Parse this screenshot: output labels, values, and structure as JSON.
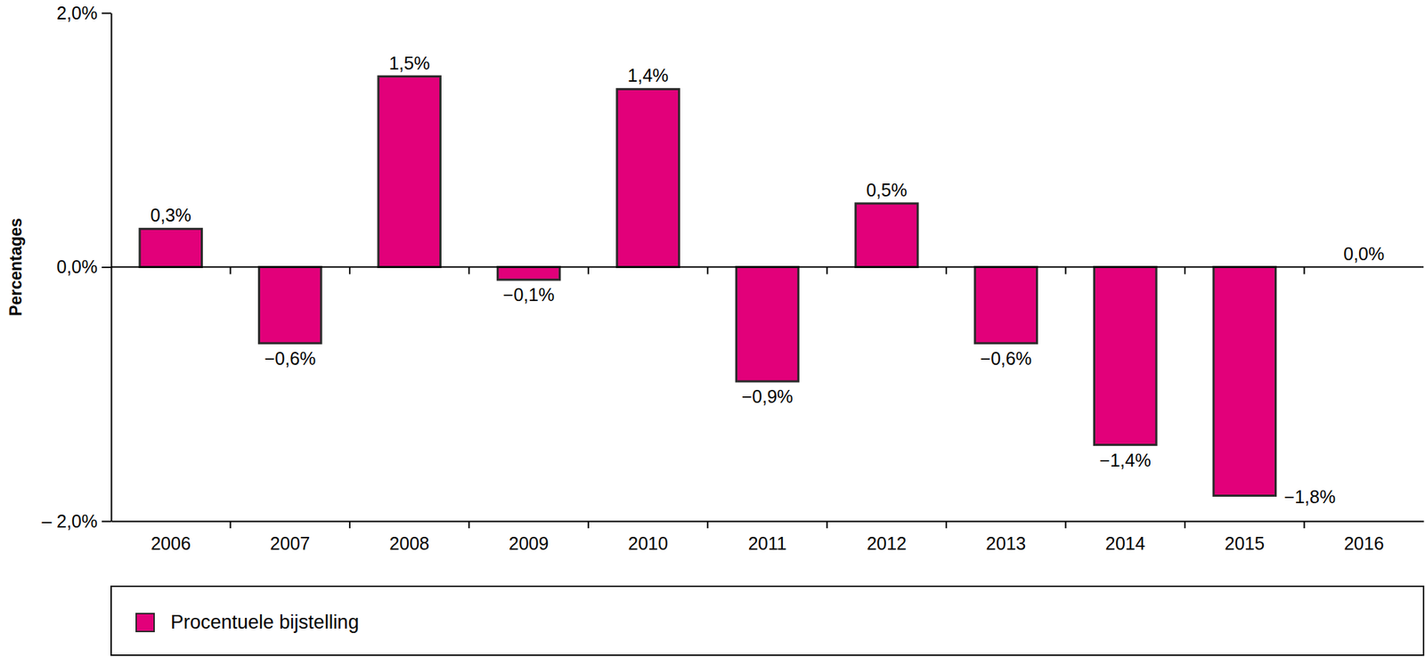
{
  "chart_data": {
    "type": "bar",
    "y_label": "Percentages",
    "categories": [
      "2006",
      "2007",
      "2008",
      "2009",
      "2010",
      "2011",
      "2012",
      "2013",
      "2014",
      "2015",
      "2016"
    ],
    "series": [
      {
        "name": "Procentuele bijstelling",
        "color": "#e2007a",
        "values": [
          0.3,
          -0.6,
          1.5,
          -0.1,
          1.4,
          -0.9,
          0.5,
          -0.6,
          -1.4,
          -1.8,
          0.0
        ],
        "value_labels": [
          "0,3%",
          "−0,6%",
          "1,5%",
          "−0,1%",
          "1,4%",
          "−0,9%",
          "0,5%",
          "−0,6%",
          "−1,4%",
          "−1,8%",
          "0,0%"
        ]
      }
    ],
    "ylim": [
      -2,
      2
    ],
    "yticks": [
      {
        "value": -2,
        "label": "– 2,0%"
      },
      {
        "value": 0,
        "label": "0,0%"
      },
      {
        "value": 2,
        "label": "2,0%"
      }
    ],
    "data_labels": true,
    "legend": "bottom",
    "grid": false
  }
}
